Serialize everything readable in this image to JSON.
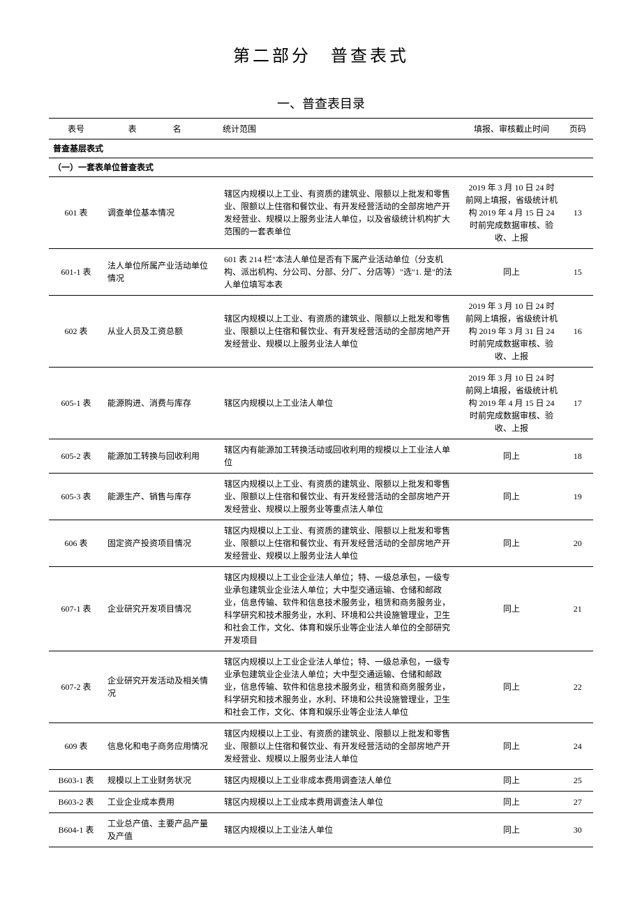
{
  "titles": {
    "main": "第二部分　普查表式",
    "sub": "一、普查表目录"
  },
  "headers": {
    "id": "表号",
    "name": "表　名",
    "scope": "统计范围",
    "deadline": "填报、审核截止时间",
    "page": "页码"
  },
  "sections": {
    "s1": "普查基层表式",
    "s2": "（一）一套表单位普查表式"
  },
  "rows": {
    "r0": {
      "id": "601 表",
      "name": "调查单位基本情况",
      "scope": "辖区内规模以上工业、有资质的建筑业、限额以上批发和零售业、限额以上住宿和餐饮业、有开发经营活动的全部房地产开发经营业、规模以上服务业法人单位，以及省级统计机构扩大范围的一套表单位",
      "deadline": "2019 年 3 月 10 日 24 时前网上填报，省级统计机构 2019 年 4 月 15 日 24 时前完成数据审核、验收、上报",
      "page": "13"
    },
    "r1": {
      "id": "601-1 表",
      "name": "法人单位所属产业活动单位情况",
      "scope": "601 表 214 栏\"本法人单位是否有下属产业活动单位（分支机构、派出机构、分公司、分部、分厂、分店等）\"选\"1. 是\"的法人单位填写本表",
      "deadline": "同上",
      "page": "15"
    },
    "r2": {
      "id": "602 表",
      "name": "从业人员及工资总额",
      "scope": "辖区内规模以上工业、有资质的建筑业、限额以上批发和零售业、限额以上住宿和餐饮业、有开发经营活动的全部房地产开发经营业、规模以上服务业法人单位",
      "deadline": "2019 年 3 月 10 日 24 时前网上填报，省级统计机构 2019 年 3 月 31 日 24 时前完成数据审核、验收、上报",
      "page": "16"
    },
    "r3": {
      "id": "605-1 表",
      "name": "能源购进、消费与库存",
      "scope": "辖区内规模以上工业法人单位",
      "deadline": "2019 年 3 月 10 日 24 时前网上填报，省级统计机构 2019 年 4 月 15 日 24 时前完成数据审核、验收、上报",
      "page": "17"
    },
    "r4": {
      "id": "605-2 表",
      "name": "能源加工转换与回收利用",
      "scope": "辖区内有能源加工转换活动或回收利用的规模以上工业法人单位",
      "deadline": "同上",
      "page": "18"
    },
    "r5": {
      "id": "605-3 表",
      "name": "能源生产、销售与库存",
      "scope": "辖区内规模以上工业、有资质的建筑业、限额以上批发和零售业、限额以上住宿和餐饮业、有开发经营活动的全部房地产开发经营业、规模以上服务业等重点法人单位",
      "deadline": "同上",
      "page": "19"
    },
    "r6": {
      "id": "606 表",
      "name": "固定资产投资项目情况",
      "scope": "辖区内规模以上工业、有资质的建筑业、限额以上批发和零售业、限额以上住宿和餐饮业、有开发经营活动的全部房地产开发经营业、规模以上服务业法人单位",
      "deadline": "同上",
      "page": "20"
    },
    "r7": {
      "id": "607-1 表",
      "name": "企业研究开发项目情况",
      "scope": "辖区内规模以上工业企业法人单位；特、一级总承包，一级专业承包建筑业企业法人单位；大中型交通运输、仓储和邮政业，信息传输、软件和信息技术服务业，租赁和商务服务业，科学研究和技术服务业，水利、环境和公共设施管理业，卫生和社会工作，文化、体育和娱乐业等企业法人单位的全部研究开发项目",
      "deadline": "同上",
      "page": "21"
    },
    "r8": {
      "id": "607-2 表",
      "name": "企业研究开发活动及相关情况",
      "scope": "辖区内规模以上工业企业法人单位；特、一级总承包，一级专业承包建筑业企业法人单位；大中型交通运输、仓储和邮政业，信息传输、软件和信息技术服务业，租赁和商务服务业，科学研究和技术服务业，水利、环境和公共设施管理业，卫生和社会工作，文化、体育和娱乐业等企业法人单位",
      "deadline": "同上",
      "page": "22"
    },
    "r9": {
      "id": "609 表",
      "name": "信息化和电子商务应用情况",
      "scope": "辖区内规模以上工业、有资质的建筑业、限额以上批发和零售业、限额以上住宿和餐饮业、有开发经营活动的全部房地产开发经营业、规模以上服务业法人单位",
      "deadline": "同上",
      "page": "24"
    },
    "r10": {
      "id": "B603-1 表",
      "name": "规模以上工业财务状况",
      "scope": "辖区内规模以上工业非成本费用调查法人单位",
      "deadline": "同上",
      "page": "25"
    },
    "r11": {
      "id": "B603-2 表",
      "name": "工业企业成本费用",
      "scope": "辖区内规模以上工业成本费用调查法人单位",
      "deadline": "同上",
      "page": "27"
    },
    "r12": {
      "id": "B604-1 表",
      "name": "工业总产值、主要产品产量及产值",
      "scope": "辖区内规模以上工业法人单位",
      "deadline": "同上",
      "page": "30"
    }
  }
}
